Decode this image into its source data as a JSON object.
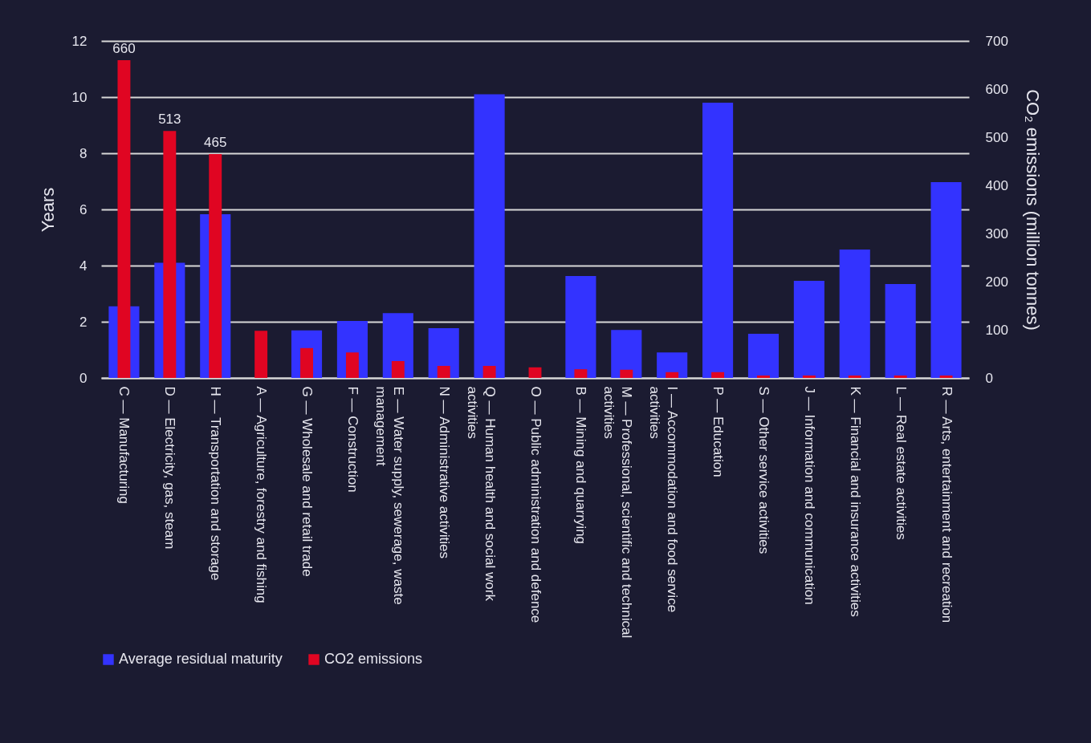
{
  "chart_data": {
    "type": "bar",
    "categories": [
      "C — Manufacturing",
      "D — Electricity, gas, steam",
      "H — Transportation and storage",
      "A — Agriculture, forestry and fishing",
      "G — Wholesale and retail trade",
      "F — Construction",
      "E — Water supply, sewerage, waste management",
      "N — Administrative activities",
      "Q — Human health and social work activities",
      "O — Public administration and defence",
      "B — Mining and quarrying",
      "M — Professional, scientific and technical activities",
      "I — Accommodation and food service activities",
      "P — Education",
      "S — Other service activities",
      "J — Information and communication",
      "K — Financial and insurance activities",
      "L — Real estate activities",
      "R — Arts, entertainment and recreation"
    ],
    "series": [
      {
        "name": "Average residual maturity",
        "color": "#3333ff",
        "values": [
          2.55,
          4.1,
          5.83,
          null,
          1.69,
          2.03,
          2.31,
          1.77,
          10.1,
          null,
          3.63,
          1.71,
          0.91,
          9.8,
          1.57,
          3.46,
          4.57,
          3.34,
          6.97
        ]
      },
      {
        "name": "CO2 emissions",
        "color": "#e00522",
        "axis": "y2",
        "values": [
          660,
          513,
          465,
          98,
          62,
          53,
          35,
          25,
          25,
          22,
          18,
          17,
          12,
          12,
          5,
          5,
          5,
          5,
          5
        ],
        "value_labels": [
          "660",
          "513",
          "465",
          null,
          null,
          null,
          null,
          null,
          null,
          null,
          null,
          null,
          null,
          null,
          null,
          null,
          null,
          null,
          null
        ]
      }
    ],
    "ylabel": "Years",
    "y2label": "CO₂ emissions (million tonnes)",
    "ylim": [
      0,
      12
    ],
    "yticks": [
      0,
      2,
      4,
      6,
      8,
      10,
      12
    ],
    "y2lim": [
      0,
      700
    ],
    "y2ticks": [
      0,
      100,
      200,
      300,
      400,
      500,
      600,
      700
    ],
    "grid": "y",
    "legend": "bottom"
  }
}
